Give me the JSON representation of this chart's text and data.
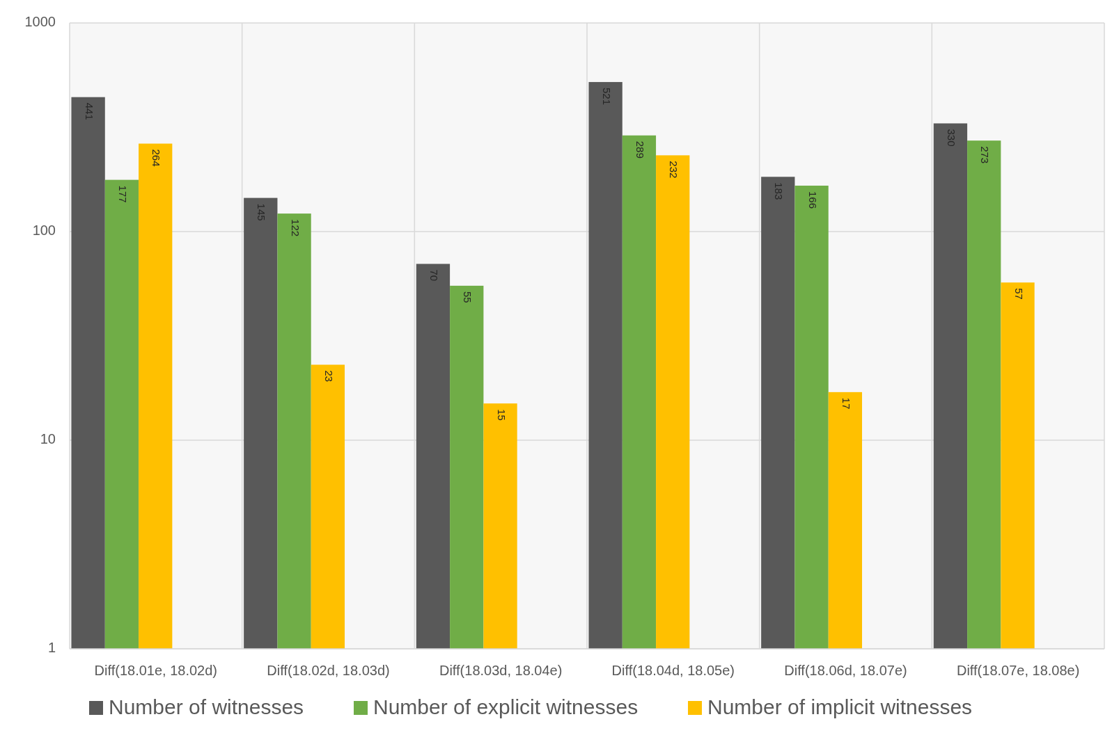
{
  "chart_data": {
    "type": "bar",
    "categories": [
      "Diff(18.01e, 18.02d)",
      "Diff(18.02d, 18.03d)",
      "Diff(18.03d, 18.04e)",
      "Diff(18.04d, 18.05e)",
      "Diff(18.06d, 18.07e)",
      "Diff(18.07e, 18.08e)"
    ],
    "series": [
      {
        "name": "Number of witnesses",
        "color": "#595959",
        "values": [
          441,
          145,
          70,
          521,
          183,
          330
        ]
      },
      {
        "name": "Number of explicit witnesses",
        "color": "#70ad47",
        "values": [
          177,
          122,
          55,
          289,
          166,
          273
        ]
      },
      {
        "name": "Number of implicit witnesses",
        "color": "#ffc000",
        "values": [
          264,
          23,
          15,
          232,
          17,
          57
        ]
      }
    ],
    "log": true,
    "ylim": [
      1,
      1000
    ],
    "yticks": [
      1,
      10,
      100,
      1000
    ],
    "grid": true,
    "legend": "bottom",
    "data_labels": true
  }
}
